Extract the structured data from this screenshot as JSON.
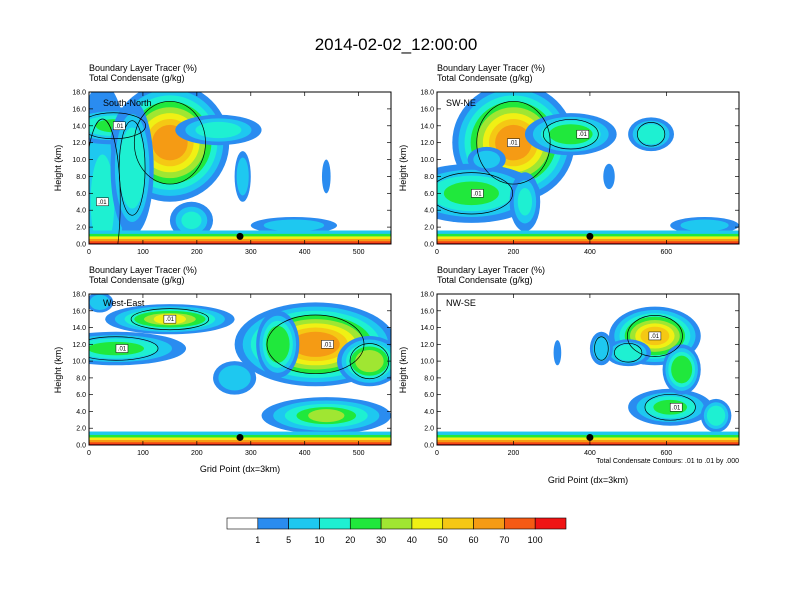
{
  "title": "2014-02-02_12:00:00",
  "panel_label_line1": "Boundary Layer Tracer   (%)",
  "panel_label_line2": "Total Condensate   (g/kg)",
  "ylabel": "Height (km)",
  "xlabel": "Grid Point (dx=3km)",
  "contour_note": "Total Condensate Contours: .01 to .01 by .000",
  "colorbar": {
    "labels": [
      "1",
      "5",
      "10",
      "20",
      "30",
      "40",
      "50",
      "60",
      "70",
      "100"
    ],
    "colors": [
      "#ffffff",
      "#2a8cf0",
      "#1ec8f0",
      "#1ef0d2",
      "#20e83c",
      "#a0e632",
      "#f0f014",
      "#f5c814",
      "#f59b14",
      "#f55a14",
      "#f01414"
    ]
  },
  "chart_data": [
    {
      "type": "heatmap",
      "panel": "South-North",
      "title": "South-North",
      "ylim": [
        0,
        18
      ],
      "y_ticks": [
        "0.0",
        "2.0",
        "4.0",
        "6.0",
        "8.0",
        "10.0",
        "12.0",
        "14.0",
        "16.0",
        "18.0"
      ],
      "xlim": [
        0,
        560
      ],
      "x_ticks": [
        "0",
        "100",
        "200",
        "300",
        "400",
        "500"
      ],
      "marker_x": 280,
      "contour_labels": [
        ".01",
        ".01"
      ],
      "blobs": [
        [
          0,
          0.8,
          560,
          0.8,
          2,
          8
        ],
        [
          25,
          5,
          55,
          14,
          3,
          0.9
        ],
        [
          45,
          14,
          100,
          2.2,
          4,
          0.9
        ],
        [
          150,
          12,
          110,
          7,
          8,
          0.8
        ],
        [
          80,
          9,
          40,
          8,
          3,
          0.6
        ],
        [
          240,
          13.5,
          80,
          1.8,
          3,
          0.7
        ],
        [
          190,
          2.8,
          40,
          2.2,
          3,
          0.8
        ],
        [
          285,
          8,
          15,
          3,
          2,
          0.5
        ],
        [
          380,
          2.2,
          80,
          1,
          2,
          0.6
        ],
        [
          440,
          8,
          8,
          2,
          1,
          0.5
        ]
      ]
    },
    {
      "type": "heatmap",
      "panel": "SW-NE",
      "title": "SW-NE",
      "ylim": [
        0,
        18
      ],
      "y_ticks": [
        "0.0",
        "2.0",
        "4.0",
        "6.0",
        "8.0",
        "10.0",
        "12.0",
        "14.0",
        "16.0",
        "18.0"
      ],
      "xlim": [
        0,
        790
      ],
      "x_ticks": [
        "0",
        "200",
        "400",
        "600"
      ],
      "marker_x": 400,
      "contour_labels": [
        ".01",
        ".01",
        ".01"
      ],
      "blobs": [
        [
          0,
          0.8,
          790,
          0.8,
          2,
          8
        ],
        [
          200,
          12,
          160,
          7,
          8,
          0.8
        ],
        [
          90,
          6,
          180,
          3.5,
          4,
          0.8
        ],
        [
          350,
          13,
          120,
          2.5,
          4,
          0.7
        ],
        [
          560,
          13,
          60,
          2,
          3,
          0.6
        ],
        [
          130,
          10,
          50,
          1.5,
          2,
          0.6
        ],
        [
          450,
          8,
          15,
          1.5,
          1,
          0.4
        ],
        [
          700,
          2.2,
          90,
          1,
          2,
          0.6
        ],
        [
          230,
          5,
          40,
          3.5,
          3,
          0.8
        ]
      ]
    },
    {
      "type": "heatmap",
      "panel": "West-East",
      "title": "West-East",
      "ylim": [
        0,
        18
      ],
      "y_ticks": [
        "0.0",
        "2.0",
        "4.0",
        "6.0",
        "8.0",
        "10.0",
        "12.0",
        "14.0",
        "16.0",
        "18.0"
      ],
      "xlim": [
        0,
        560
      ],
      "x_ticks": [
        "0",
        "100",
        "200",
        "300",
        "400",
        "500"
      ],
      "marker_x": 280,
      "contour_labels": [
        ".01",
        ".01",
        ".01"
      ],
      "blobs": [
        [
          0,
          0.8,
          560,
          0.8,
          2,
          8
        ],
        [
          150,
          15,
          120,
          1.8,
          6,
          0.9
        ],
        [
          50,
          11.5,
          130,
          2,
          4,
          0.8
        ],
        [
          420,
          12,
          150,
          5,
          8,
          0.8
        ],
        [
          520,
          10,
          60,
          3,
          5,
          0.7
        ],
        [
          440,
          3.5,
          120,
          2.2,
          5,
          0.9
        ],
        [
          20,
          17,
          25,
          1.2,
          2,
          0.5
        ],
        [
          270,
          8,
          40,
          2,
          2,
          0.5
        ],
        [
          350,
          12,
          40,
          4,
          4,
          0.6
        ]
      ]
    },
    {
      "type": "heatmap",
      "panel": "NW-SE",
      "title": "NW-SE",
      "ylim": [
        0,
        18
      ],
      "y_ticks": [
        "0.0",
        "2.0",
        "4.0",
        "6.0",
        "8.0",
        "10.0",
        "12.0",
        "14.0",
        "16.0",
        "18.0"
      ],
      "xlim": [
        0,
        790
      ],
      "x_ticks": [
        "0",
        "200",
        "400",
        "600"
      ],
      "marker_x": 400,
      "contour_labels": [
        ".01",
        ".01"
      ],
      "blobs": [
        [
          0,
          0.8,
          790,
          0.8,
          2,
          8
        ],
        [
          570,
          13,
          120,
          3.5,
          7,
          0.8
        ],
        [
          610,
          4.5,
          110,
          2.2,
          4,
          0.8
        ],
        [
          500,
          11,
          60,
          1.6,
          3,
          0.6
        ],
        [
          430,
          11.5,
          30,
          2,
          2,
          0.5
        ],
        [
          640,
          9,
          50,
          3,
          4,
          0.6
        ],
        [
          730,
          3.5,
          40,
          2,
          3,
          0.6
        ],
        [
          315,
          11,
          10,
          1.5,
          1,
          0.4
        ],
        [
          290,
          1,
          120,
          0.6,
          2,
          0.5
        ]
      ]
    }
  ]
}
